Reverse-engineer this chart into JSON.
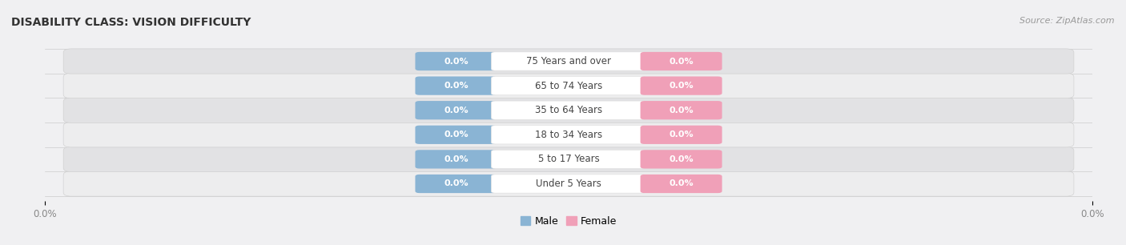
{
  "title": "DISABILITY CLASS: VISION DIFFICULTY",
  "source_text": "Source: ZipAtlas.com",
  "categories": [
    "Under 5 Years",
    "5 to 17 Years",
    "18 to 34 Years",
    "35 to 64 Years",
    "65 to 74 Years",
    "75 Years and over"
  ],
  "male_values": [
    0.0,
    0.0,
    0.0,
    0.0,
    0.0,
    0.0
  ],
  "female_values": [
    0.0,
    0.0,
    0.0,
    0.0,
    0.0,
    0.0
  ],
  "male_color": "#8ab4d4",
  "female_color": "#f0a0b8",
  "bar_bg_color_light": "#ededee",
  "bar_bg_color_dark": "#e2e2e4",
  "title_fontsize": 10,
  "source_fontsize": 8,
  "label_fontsize": 8.5,
  "value_fontsize": 8,
  "figsize": [
    14.06,
    3.06
  ],
  "dpi": 100,
  "bg_color": "#f0f0f2"
}
